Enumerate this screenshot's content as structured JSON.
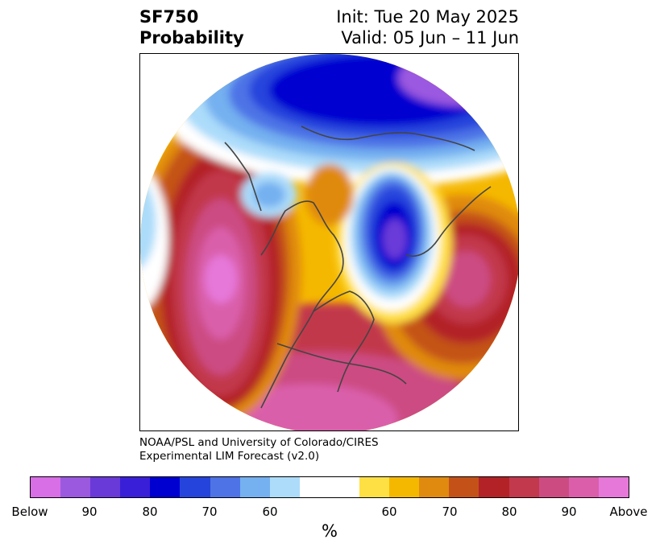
{
  "header": {
    "variable": "SF750",
    "subtitle": "Probability",
    "init": "Init: Tue 20 May 2025",
    "valid": "Valid: 05 Jun – 11 Jun"
  },
  "credit": {
    "line1": "NOAA/PSL and University of Colorado/CIRES",
    "line2": "Experimental LIM Forecast (v2.0)"
  },
  "colorbar": {
    "colors": [
      "#d96fe6",
      "#9b59e0",
      "#6a3ad8",
      "#3a1fd8",
      "#0000d0",
      "#2544dc",
      "#4e73e6",
      "#75b0f0",
      "#acdcfa",
      "#ffffff",
      "#ffffff",
      "#ffe044",
      "#f5b800",
      "#e08a10",
      "#c45218",
      "#b32226",
      "#c2384c",
      "#cc4c82",
      "#da5eaa",
      "#e678da"
    ],
    "labels": [
      "Below",
      "90",
      "80",
      "70",
      "60",
      "60",
      "70",
      "80",
      "90",
      "Above"
    ],
    "unit": "%"
  },
  "map": {
    "projection": "polar stereographic",
    "region": "Northern Hemisphere / North America"
  }
}
